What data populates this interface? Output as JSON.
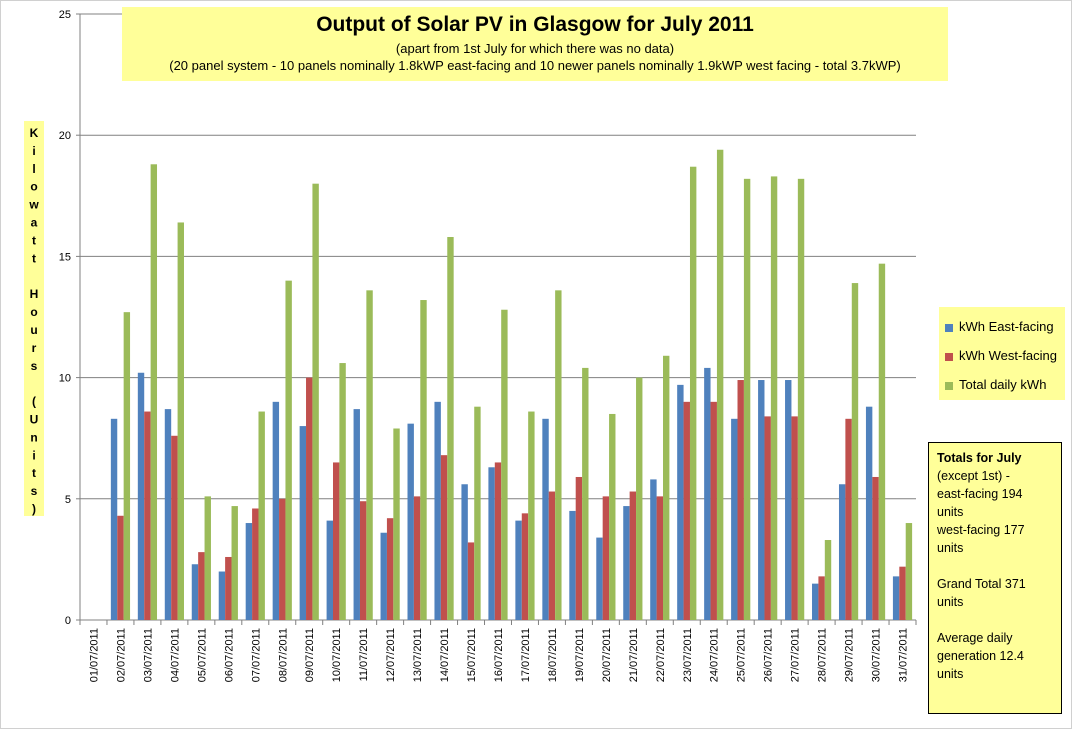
{
  "chart_data": {
    "type": "bar",
    "title": "Output of Solar PV in Glasgow for July 2011",
    "subtitle_1": "(apart from 1st July for which there was no data)",
    "subtitle_2": "(20 panel system - 10 panels nominally 1.8kWP east-facing and  10 newer panels nominally 1.9kWP west facing - total 3.7kWP)",
    "ylabel": "Kilowatt Hours (Units)",
    "ylim": [
      0,
      25
    ],
    "yticks": [
      0,
      5,
      10,
      15,
      20,
      25
    ],
    "grid": true,
    "legend_position": "right",
    "categories": [
      "01/07/2011",
      "02/07/2011",
      "03/07/2011",
      "04/07/2011",
      "05/07/2011",
      "06/07/2011",
      "07/07/2011",
      "08/07/2011",
      "09/07/2011",
      "10/07/2011",
      "11/07/2011",
      "12/07/2011",
      "13/07/2011",
      "14/07/2011",
      "15/07/2011",
      "16/07/2011",
      "17/07/2011",
      "18/07/2011",
      "19/07/2011",
      "20/07/2011",
      "21/07/2011",
      "22/07/2011",
      "23/07/2011",
      "24/07/2011",
      "25/07/2011",
      "26/07/2011",
      "27/07/2011",
      "28/07/2011",
      "29/07/2011",
      "30/07/2011",
      "31/07/2011"
    ],
    "series": [
      {
        "name": "kWh East-facing",
        "color": "#4f81bd",
        "values": [
          0,
          8.3,
          10.2,
          8.7,
          2.3,
          2.0,
          4.0,
          9.0,
          8.0,
          4.1,
          8.7,
          3.6,
          8.1,
          9.0,
          5.6,
          6.3,
          4.1,
          8.3,
          4.5,
          3.4,
          4.7,
          5.8,
          9.7,
          10.4,
          8.3,
          9.9,
          9.9,
          1.5,
          5.6,
          8.8,
          1.8
        ]
      },
      {
        "name": "kWh West-facing",
        "color": "#c0504d",
        "values": [
          0,
          4.3,
          8.6,
          7.6,
          2.8,
          2.6,
          4.6,
          5.0,
          10.0,
          6.5,
          4.9,
          4.2,
          5.1,
          6.8,
          3.2,
          6.5,
          4.4,
          5.3,
          5.9,
          5.1,
          5.3,
          5.1,
          9.0,
          9.0,
          9.9,
          8.4,
          8.4,
          1.8,
          8.3,
          5.9,
          2.2
        ]
      },
      {
        "name": "Total daily kWh",
        "color": "#9bbb59",
        "values": [
          0,
          12.7,
          18.8,
          16.4,
          5.1,
          4.7,
          8.6,
          14.0,
          18.0,
          10.6,
          13.6,
          7.9,
          13.2,
          15.8,
          8.8,
          12.8,
          8.6,
          13.6,
          10.4,
          8.5,
          10.0,
          10.9,
          18.7,
          19.4,
          18.2,
          18.3,
          18.2,
          3.3,
          13.9,
          14.7,
          4.0
        ]
      }
    ]
  },
  "totals": {
    "heading": "Totals for July",
    "line1": "(except 1st) -",
    "line2": "east-facing 194",
    "line3": "units",
    "line4": "west-facing 177",
    "line5": "units",
    "line6": "Grand Total 371",
    "line7": "units",
    "line8": "Average daily",
    "line9": "generation 12.4",
    "line10": "units"
  }
}
